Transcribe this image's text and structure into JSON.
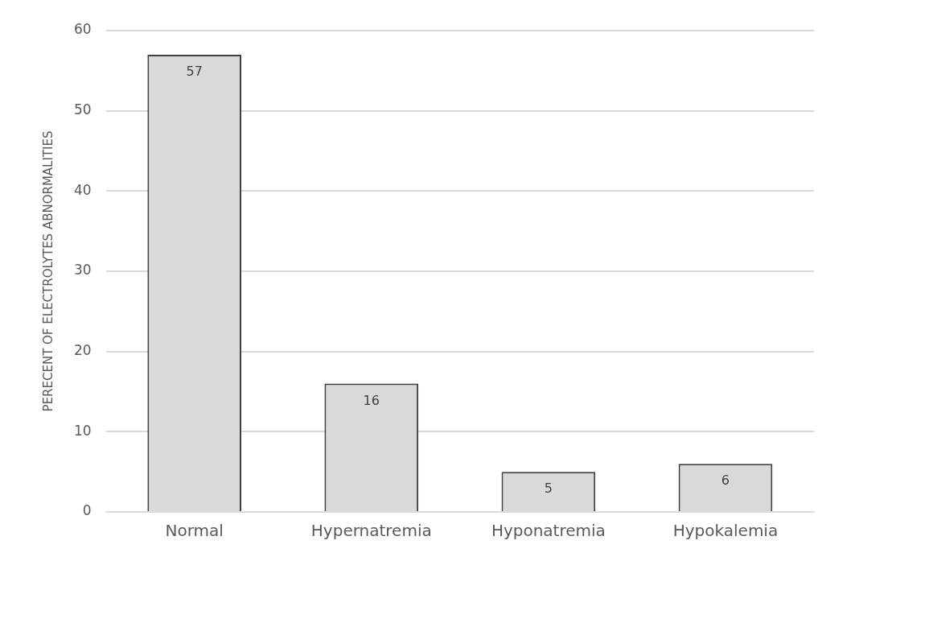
{
  "chart_data": {
    "type": "bar",
    "ylabel": "PERECENT OF ELECTROLYTES ABNORMALITIES",
    "categories": [
      "Normal",
      "Hypernatremia",
      "Hyponatremia",
      "Hypokalemia"
    ],
    "values": [
      57,
      16,
      5,
      6
    ],
    "color": "#d9d9d9",
    "ylim": [
      0,
      60
    ],
    "yticks": [
      0,
      10,
      20,
      30,
      40,
      50,
      60
    ],
    "grid": "y",
    "data_labels": true,
    "legend": false
  }
}
